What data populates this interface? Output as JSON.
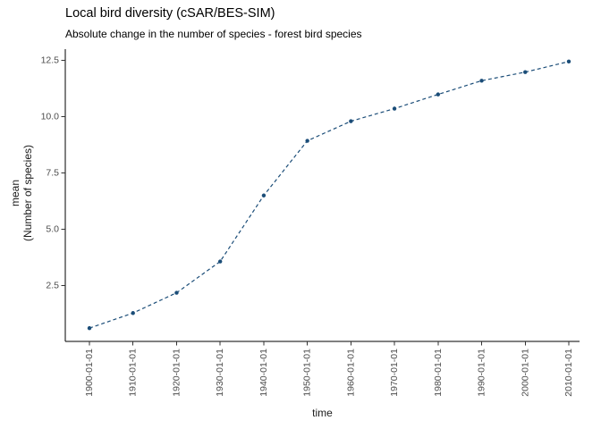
{
  "chart_data": {
    "type": "line",
    "title": "Local bird diversity (cSAR/BES-SIM)",
    "subtitle": "Absolute change in the number of species - forest bird species",
    "xlabel": "time",
    "ylabel_lines": [
      "mean",
      "(Number of species)"
    ],
    "x": [
      "1900-01-01",
      "1910-01-01",
      "1920-01-01",
      "1930-01-01",
      "1940-01-01",
      "1950-01-01",
      "1960-01-01",
      "1970-01-01",
      "1980-01-01",
      "1990-01-01",
      "2000-01-01",
      "2010-01-01"
    ],
    "values": [
      0.61,
      1.28,
      2.18,
      3.57,
      6.5,
      8.93,
      9.8,
      10.36,
      10.99,
      11.6,
      11.98,
      12.45
    ],
    "ytick_labels": [
      "2.5",
      "5.0",
      "7.5",
      "10.0",
      "12.5"
    ],
    "ytick_values": [
      2.5,
      5.0,
      7.5,
      10.0,
      12.5
    ],
    "ylim": [
      0.02,
      13.0
    ],
    "grid": false,
    "legend": "none",
    "line_style": "dashed",
    "marker": "point",
    "colors": {
      "series": "#1b4d78",
      "axis_text": "#4d4d4d",
      "axis_title": "#1a1a1a",
      "axis_line": "#000000",
      "background": "#ffffff"
    }
  }
}
